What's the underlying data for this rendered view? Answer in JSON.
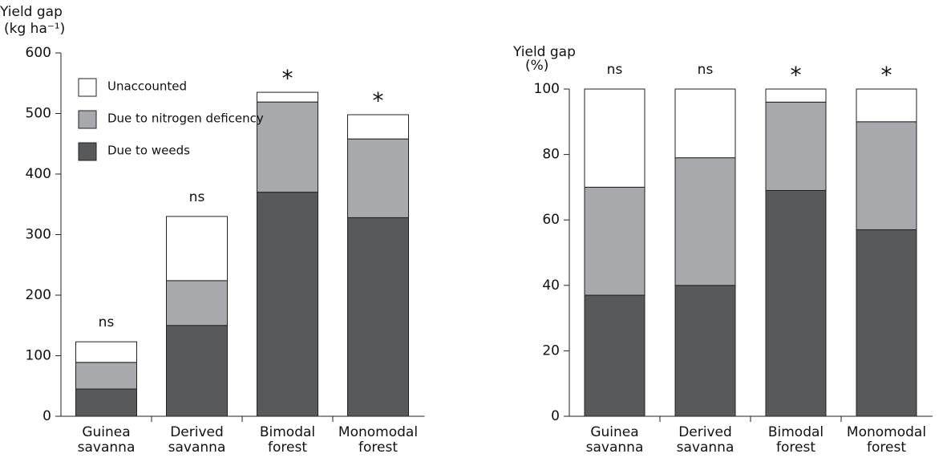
{
  "chart_data": [
    {
      "type": "stacked_bar",
      "ylabel": [
        "Yield gap",
        "(kg ha⁻¹)"
      ],
      "categories": [
        [
          "Guinea",
          "savanna"
        ],
        [
          "Derived",
          "savanna"
        ],
        [
          "Bimodal",
          "forest"
        ],
        [
          "Monomodal",
          "forest"
        ]
      ],
      "series": [
        {
          "name": "Due to weeds",
          "color": "#58595b",
          "values": [
            45,
            150,
            370,
            328
          ]
        },
        {
          "name": "Due to nitrogen deficency",
          "color": "#a7a9ac",
          "values": [
            44,
            74,
            149,
            130
          ]
        },
        {
          "name": "Unaccounted",
          "color": "#ffffff",
          "values": [
            34,
            106,
            16,
            40
          ]
        }
      ],
      "annotations": [
        "ns",
        "ns",
        "*",
        "*"
      ],
      "ylim": [
        0,
        600
      ],
      "yticks": [
        0,
        100,
        200,
        300,
        400,
        500,
        600
      ],
      "legend": "upper left"
    },
    {
      "type": "stacked_bar",
      "ylabel": [
        "Yield gap",
        "(%)"
      ],
      "categories": [
        [
          "Guinea",
          "savanna"
        ],
        [
          "Derived",
          "savanna"
        ],
        [
          "Bimodal",
          "forest"
        ],
        [
          "Monomodal",
          "forest"
        ]
      ],
      "series": [
        {
          "color": "#58595b",
          "values": [
            37,
            40,
            69,
            57
          ]
        },
        {
          "color": "#a7a9ac",
          "values": [
            33,
            39,
            27,
            33
          ]
        },
        {
          "color": "#ffffff",
          "values": [
            30,
            21,
            4,
            10
          ]
        }
      ],
      "annotations": [
        "ns",
        "ns",
        "*",
        "*"
      ],
      "ylim": [
        0,
        100
      ],
      "yticks": [
        0,
        20,
        40,
        60,
        80,
        100
      ]
    }
  ]
}
